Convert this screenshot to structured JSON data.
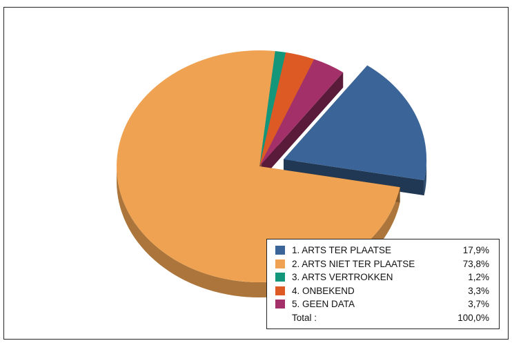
{
  "chart_data": {
    "type": "pie",
    "style": "3d-exploded",
    "slices": [
      {
        "label": "1. ARTS TER PLAATSE",
        "value": 17.9,
        "value_label": "17,9%",
        "color": "#3B6598",
        "exploded": true
      },
      {
        "label": "2. ARTS NIET TER PLAATSE",
        "value": 73.8,
        "value_label": "73,8%",
        "color": "#EFA352"
      },
      {
        "label": "3. ARTS VERTROKKEN",
        "value": 1.2,
        "value_label": "1,2%",
        "color": "#13967A"
      },
      {
        "label": "4. ONBEKEND",
        "value": 3.3,
        "value_label": "3,3%",
        "color": "#DE5A24"
      },
      {
        "label": "5. GEEN DATA",
        "value": 3.7,
        "value_label": "3,7%",
        "color": "#A33068"
      }
    ],
    "total_label": "Total :",
    "total_value": "100,0%",
    "legend_position": "bottom-right"
  }
}
